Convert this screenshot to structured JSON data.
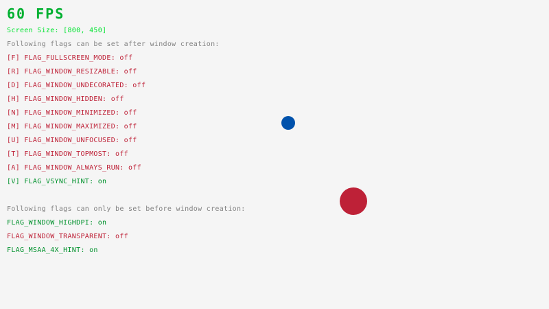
{
  "fps": "60 FPS",
  "screen_size": "Screen Size: [800, 450]",
  "after_header": "Following flags can be set after window creation:",
  "after_flags": [
    {
      "label": "[F] FLAG_FULLSCREEN_MODE: ",
      "state": "off"
    },
    {
      "label": "[R] FLAG_WINDOW_RESIZABLE: ",
      "state": "off"
    },
    {
      "label": "[D] FLAG_WINDOW_UNDECORATED: ",
      "state": "off"
    },
    {
      "label": "[H] FLAG_WINDOW_HIDDEN: ",
      "state": "off"
    },
    {
      "label": "[N] FLAG_WINDOW_MINIMIZED: ",
      "state": "off"
    },
    {
      "label": "[M] FLAG_WINDOW_MAXIMIZED: ",
      "state": "off"
    },
    {
      "label": "[U] FLAG_WINDOW_UNFOCUSED: ",
      "state": "off"
    },
    {
      "label": "[T] FLAG_WINDOW_TOPMOST: ",
      "state": "off"
    },
    {
      "label": "[A] FLAG_WINDOW_ALWAYS_RUN: ",
      "state": "off"
    },
    {
      "label": "[V] FLAG_VSYNC_HINT: ",
      "state": "on"
    }
  ],
  "before_header": "Following flags can only be set before window creation:",
  "before_flags": [
    {
      "label": "FLAG_WINDOW_HIGHDPI: ",
      "state": "on"
    },
    {
      "label": "FLAG_WINDOW_TRANSPARENT: ",
      "state": "off"
    },
    {
      "label": "FLAG_MSAA_4X_HINT: ",
      "state": "on"
    }
  ],
  "colors": {
    "background": "#f5f5f5",
    "on": "#00912c",
    "off": "#be2137",
    "blue_ball": "#0052ac",
    "red_ball": "#be2137"
  }
}
